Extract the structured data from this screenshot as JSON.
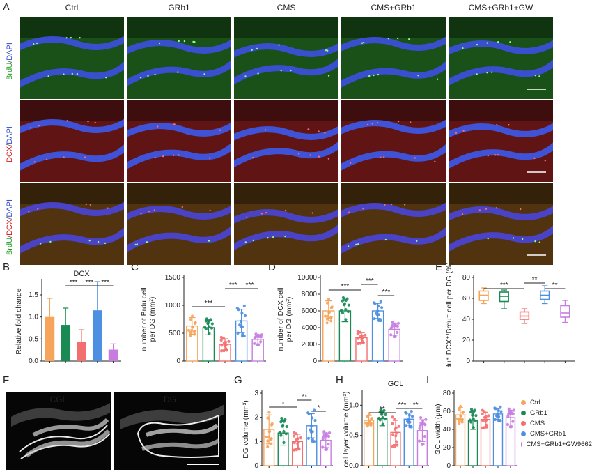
{
  "panel_letters": [
    "A",
    "B",
    "C",
    "D",
    "E",
    "F",
    "G",
    "H",
    "I"
  ],
  "micrograph": {
    "columns": [
      "Ctrl",
      "GRb1",
      "CMS",
      "CMS+GRb1",
      "CMS+GRb1+GW"
    ],
    "row_labels": [
      [
        {
          "text": "BrdU",
          "color": "#2aa02a"
        },
        {
          "text": "/",
          "color": "#555555"
        },
        {
          "text": "DAPI",
          "color": "#3a4fd0"
        }
      ],
      [
        {
          "text": "DCX",
          "color": "#d62020"
        },
        {
          "text": "/",
          "color": "#555555"
        },
        {
          "text": "DAPI",
          "color": "#3a4fd0"
        }
      ],
      [
        {
          "text": "BrdU",
          "color": "#2aa02a"
        },
        {
          "text": "/",
          "color": "#555555"
        },
        {
          "text": "DCX",
          "color": "#d62020"
        },
        {
          "text": "/",
          "color": "#555555"
        },
        {
          "text": "DAPI",
          "color": "#3a4fd0"
        }
      ]
    ],
    "row_tints": [
      "#1c5a1c",
      "#6a1616",
      "#5a3812"
    ]
  },
  "group_colors": [
    "#f5a45a",
    "#1a8a55",
    "#f36e6e",
    "#4d8fe0",
    "#c77de0"
  ],
  "legend": {
    "entries": [
      "Ctrl",
      "GRb1",
      "CMS",
      "CMS+GRb1",
      "CMS+GRb1+GW9662"
    ]
  },
  "f_panel": {
    "labels": [
      "CGL",
      "DG"
    ]
  },
  "chart_data": [
    {
      "id": "B",
      "type": "bar",
      "title": "DCX",
      "ylabel": "Relative fold change",
      "ylim": [
        0,
        1.8
      ],
      "yticks": [
        "0.0",
        "0.5",
        "1.0",
        "1.5"
      ],
      "values": [
        1.0,
        0.82,
        0.43,
        1.15,
        0.26
      ],
      "errors": [
        0.42,
        0.38,
        0.28,
        0.65,
        0.13
      ],
      "sig": [
        {
          "from": 1,
          "to": 2,
          "label": "***"
        },
        {
          "from": 2,
          "to": 3,
          "label": "***"
        },
        {
          "from": 3,
          "to": 4,
          "label": "***"
        }
      ]
    },
    {
      "id": "C",
      "type": "bar",
      "ylabel": "number of Brdu cell per DG (mm²)",
      "ylim": [
        0,
        1500
      ],
      "yticks": [
        "0",
        "500",
        "1000",
        "1500"
      ],
      "values": [
        630,
        600,
        300,
        720,
        390
      ],
      "errors": [
        150,
        130,
        100,
        210,
        80
      ],
      "sig": [
        {
          "from": 0,
          "to": 2,
          "label": "***"
        },
        {
          "from": 2,
          "to": 3,
          "label": "***"
        },
        {
          "from": 3,
          "to": 4,
          "label": "***"
        }
      ]
    },
    {
      "id": "D",
      "type": "bar",
      "ylabel": "number of DCX cell per DG (mm²)",
      "ylim": [
        0,
        10000
      ],
      "yticks": [
        "0",
        "2000",
        "4000",
        "6000",
        "8000",
        "10000"
      ],
      "values": [
        6000,
        6000,
        2800,
        6000,
        3800
      ],
      "errors": [
        1200,
        1300,
        600,
        900,
        700
      ],
      "sig": [
        {
          "from": 0,
          "to": 2,
          "label": "***"
        },
        {
          "from": 2,
          "to": 3,
          "label": "***"
        },
        {
          "from": 3,
          "to": 4,
          "label": "***"
        }
      ]
    },
    {
      "id": "E",
      "type": "box",
      "ylabel": "Brdu⁺ DCX⁺/Brdu⁺ cell per DG (%)",
      "ylim": [
        0,
        80
      ],
      "yticks": [
        "0",
        "20",
        "40",
        "60",
        "80"
      ],
      "boxes": [
        {
          "min": 55,
          "q1": 58,
          "median": 63,
          "q3": 67,
          "max": 70
        },
        {
          "min": 50,
          "q1": 57,
          "median": 62,
          "q3": 66,
          "max": 68
        },
        {
          "min": 36,
          "q1": 40,
          "median": 43,
          "q3": 47,
          "max": 50
        },
        {
          "min": 55,
          "q1": 59,
          "median": 63,
          "q3": 67,
          "max": 72
        },
        {
          "min": 37,
          "q1": 42,
          "median": 46,
          "q3": 53,
          "max": 58
        }
      ],
      "sig": [
        {
          "from": 0,
          "to": 2,
          "label": "***"
        },
        {
          "from": 2,
          "to": 3,
          "label": "**"
        },
        {
          "from": 3,
          "to": 4,
          "label": "**"
        }
      ]
    },
    {
      "id": "G",
      "type": "bar",
      "ylabel": "DG volume (mm³)",
      "ylim": [
        0,
        3
      ],
      "yticks": [
        "0",
        "1",
        "2",
        "3"
      ],
      "values": [
        1.5,
        1.35,
        1.0,
        1.65,
        1.05
      ],
      "errors": [
        0.6,
        0.5,
        0.3,
        0.5,
        0.3
      ],
      "sig": [
        {
          "from": 0,
          "to": 2,
          "label": "*"
        },
        {
          "from": 2,
          "to": 3,
          "label": "**"
        },
        {
          "from": 3,
          "to": 4,
          "label": "*"
        }
      ]
    },
    {
      "id": "H",
      "type": "bar",
      "title": "GCL",
      "ylabel": "cell layer volume (mm³)",
      "ylim": [
        0,
        1.2
      ],
      "yticks": [
        "0.0",
        "0.5",
        "1.0"
      ],
      "values": [
        0.75,
        0.78,
        0.55,
        0.77,
        0.58
      ],
      "errors": [
        0.08,
        0.12,
        0.2,
        0.1,
        0.18
      ],
      "sig": [
        {
          "from": 0,
          "to": 2,
          "label": "**"
        },
        {
          "from": 2,
          "to": 3,
          "label": "***"
        },
        {
          "from": 3,
          "to": 4,
          "label": "**"
        }
      ]
    },
    {
      "id": "I",
      "type": "bar",
      "ylabel": "GCL width (µm)",
      "ylim": [
        0,
        80
      ],
      "yticks": [
        "0",
        "20",
        "40",
        "60",
        "80"
      ],
      "values": [
        56,
        50,
        51,
        57,
        53
      ],
      "errors": [
        8,
        10,
        8,
        6,
        8
      ],
      "sig": []
    }
  ]
}
